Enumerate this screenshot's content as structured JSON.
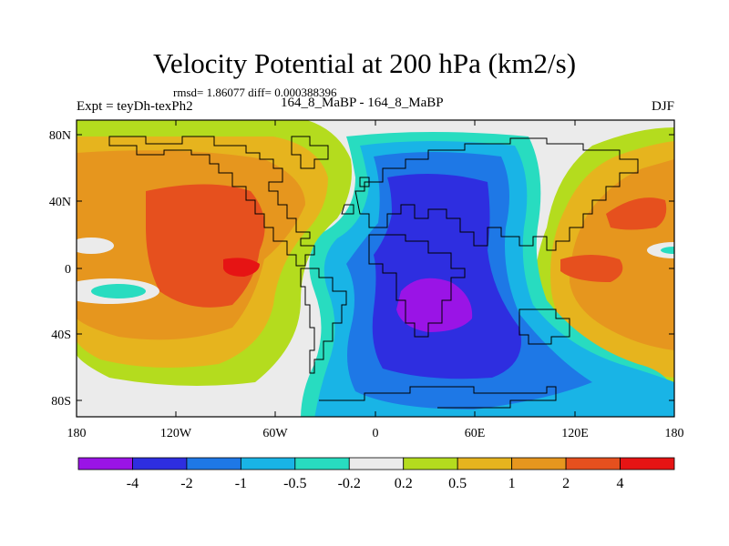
{
  "title": "Velocity Potential at 200 hPa (km2/s)",
  "stats": "rmsd= 1.86077  diff= 0.000388396",
  "experiment": "Expt = teyDh-texPh2",
  "subtitle": "164_8_MaBP - 164_8_MaBP",
  "season": "DJF",
  "y_axis_labels": [
    "80N",
    "40N",
    "0",
    "40S",
    "80S"
  ],
  "x_axis_labels": [
    "180",
    "120W",
    "60W",
    "0",
    "60E",
    "120E",
    "180"
  ],
  "colorbar": {
    "colors": [
      "#9a14e6",
      "#2e2ee0",
      "#1e78e6",
      "#19b4e6",
      "#28dcc0",
      "#ebebeb",
      "#b4dc1e",
      "#e6b41e",
      "#e6961e",
      "#e6501e",
      "#e61414"
    ],
    "labels": [
      "-4",
      "-2",
      "-1",
      "-0.5",
      "-0.2",
      "0.2",
      "0.5",
      "1",
      "2",
      "4"
    ]
  },
  "colors": {
    "land_outline": "#000000",
    "background": "#ebebeb"
  }
}
